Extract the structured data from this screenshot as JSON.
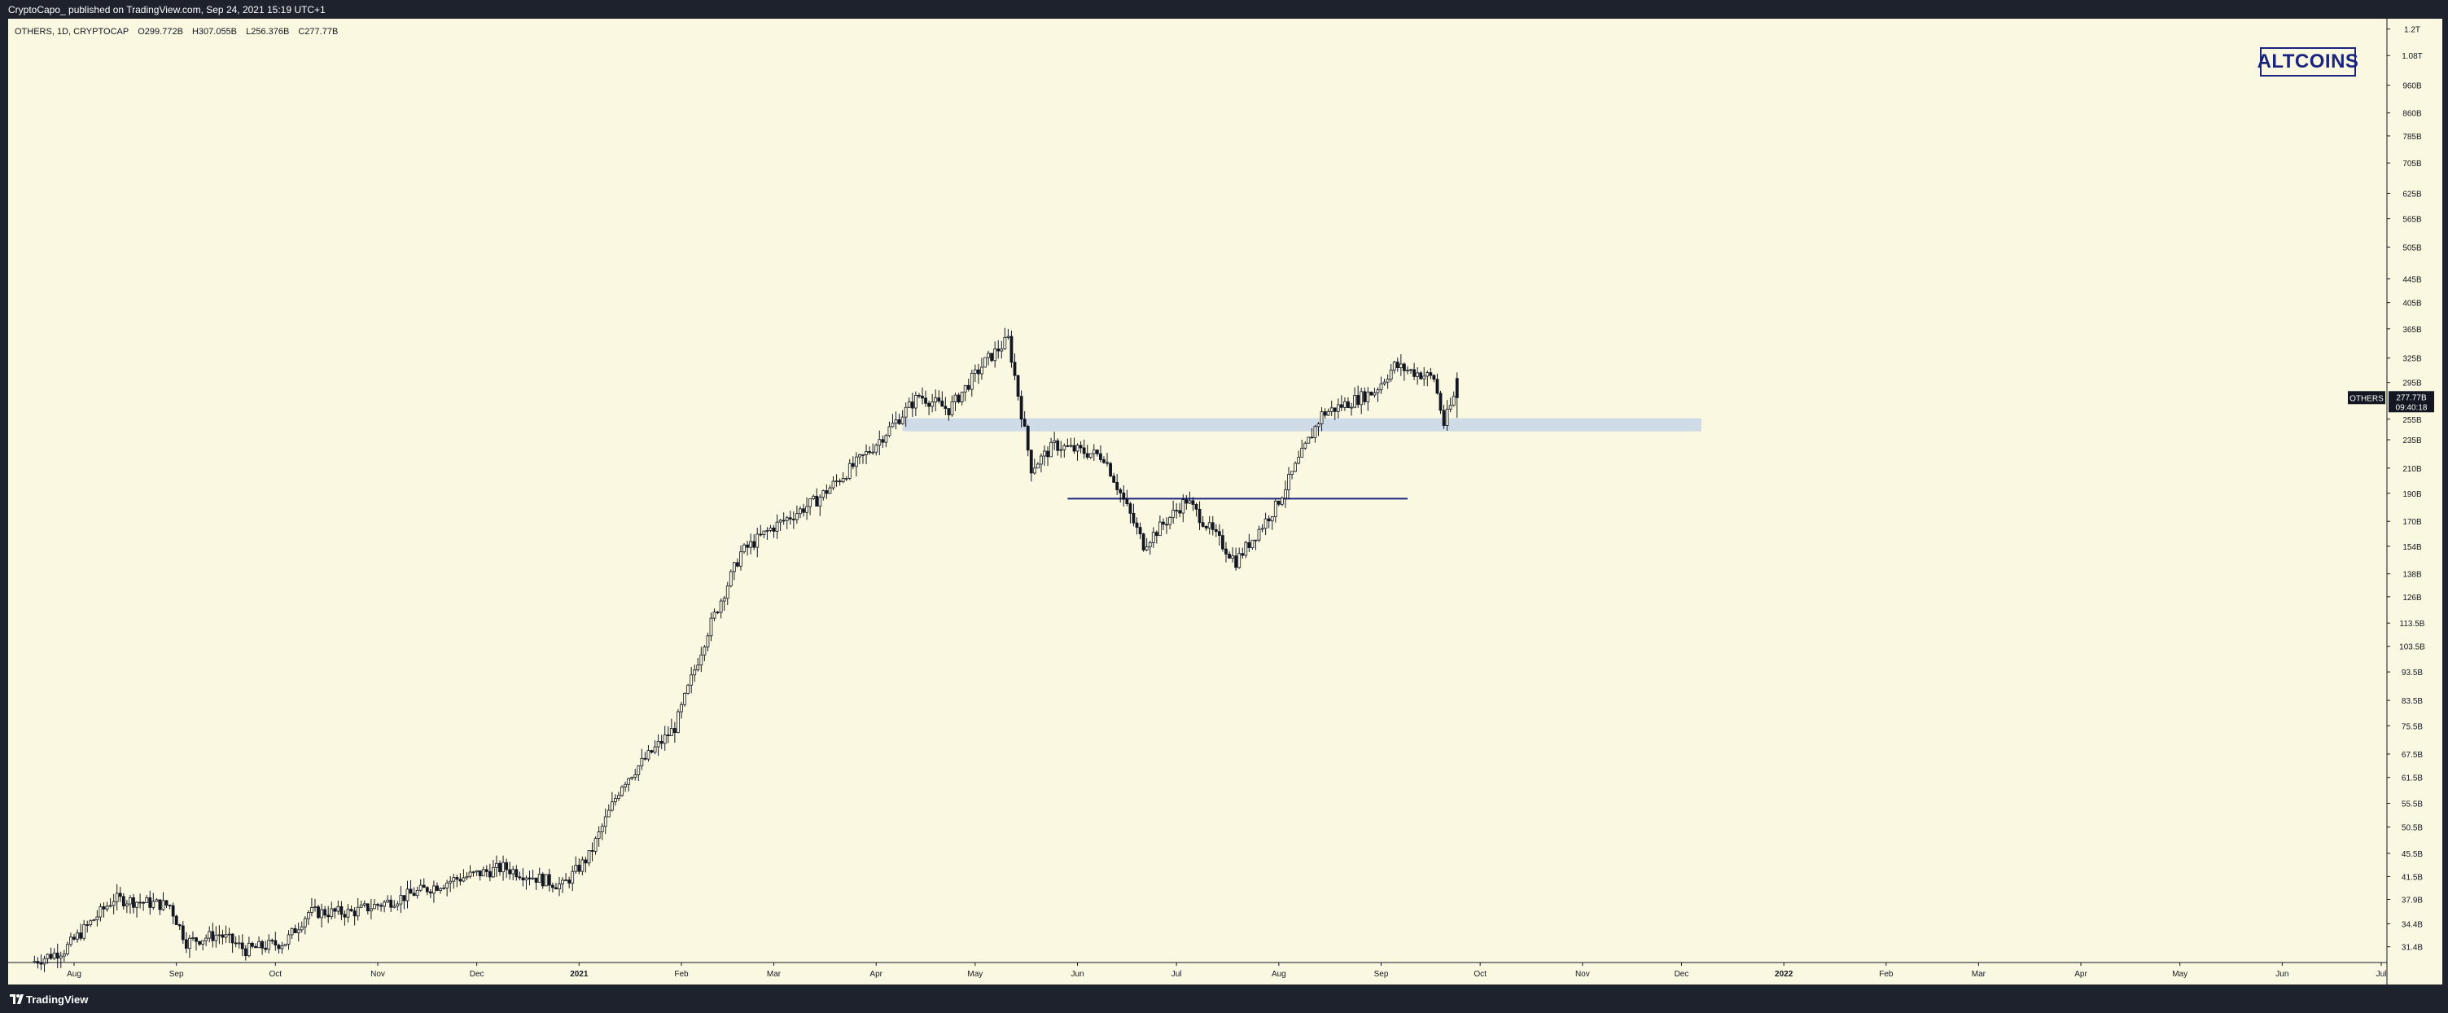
{
  "header": {
    "published_text": "CryptoCapo_ published on TradingView.com, Sep 24, 2021 15:19 UTC+1"
  },
  "symbol_info": {
    "name": "OTHERS, 1D, CRYPTOCAP",
    "open": "O299.772B",
    "high": "H307.055B",
    "low": "L256.376B",
    "close": "C277.77B"
  },
  "badge": {
    "text": "ALTCOINS"
  },
  "price_tag": {
    "symbol": "OTHERS",
    "price": "277.77B",
    "countdown": "09:40:18"
  },
  "footer": {
    "brand": "TradingView"
  },
  "colors": {
    "background": "#fbf8e1",
    "frame": "#1e222d",
    "candle": "#131722",
    "zone": "#c6d3ea",
    "level_line": "#1a237e"
  },
  "chart_data": {
    "type": "candlestick",
    "symbol": "OTHERS",
    "interval": "1D",
    "exchange": "CRYPTOCAP",
    "y_scale": "log",
    "ylim": [
      29.5,
      1250
    ],
    "y_tick_labels": [
      "1.2T",
      "1.08T",
      "960B",
      "860B",
      "785B",
      "705B",
      "625B",
      "565B",
      "505B",
      "445B",
      "405B",
      "365B",
      "325B",
      "295B",
      "255B",
      "235B",
      "210B",
      "190B",
      "170B",
      "154B",
      "138B",
      "126B",
      "113.5B",
      "103.5B",
      "93.5B",
      "83.5B",
      "75.5B",
      "67.5B",
      "61.5B",
      "55.5B",
      "50.5B",
      "45.5B",
      "41.5B",
      "37.9B",
      "34.4B",
      "31.4B"
    ],
    "y_tick_values": [
      1200,
      1080,
      960,
      860,
      785,
      705,
      625,
      565,
      505,
      445,
      405,
      365,
      325,
      295,
      255,
      235,
      210,
      190,
      170,
      154,
      138,
      126,
      113.5,
      103.5,
      93.5,
      83.5,
      75.5,
      67.5,
      61.5,
      55.5,
      50.5,
      45.5,
      41.5,
      37.9,
      34.4,
      31.4
    ],
    "x_tick_labels": [
      "Aug",
      "Sep",
      "Oct",
      "Nov",
      "Dec",
      "2021",
      "Feb",
      "Mar",
      "Apr",
      "May",
      "Jun",
      "Jul",
      "Aug",
      "Sep",
      "Oct",
      "Nov",
      "Dec",
      "2022",
      "Feb",
      "Mar",
      "Apr",
      "May",
      "Jun",
      "Jul"
    ],
    "x_tick_dates": [
      "2020-08-01",
      "2020-09-01",
      "2020-10-01",
      "2020-11-01",
      "2020-12-01",
      "2021-01-01",
      "2021-02-01",
      "2021-03-01",
      "2021-04-01",
      "2021-05-01",
      "2021-06-01",
      "2021-07-01",
      "2021-08-01",
      "2021-09-01",
      "2021-10-01",
      "2021-11-01",
      "2021-12-01",
      "2022-01-01",
      "2022-02-01",
      "2022-03-01",
      "2022-04-01",
      "2022-05-01",
      "2022-06-01",
      "2022-07-01"
    ],
    "price_path": [
      {
        "date": "2020-07-20",
        "value": 29.5
      },
      {
        "date": "2020-07-30",
        "value": 31
      },
      {
        "date": "2020-08-14",
        "value": 38
      },
      {
        "date": "2020-08-31",
        "value": 37
      },
      {
        "date": "2020-09-05",
        "value": 32
      },
      {
        "date": "2020-09-15",
        "value": 33
      },
      {
        "date": "2020-09-23",
        "value": 31
      },
      {
        "date": "2020-10-05",
        "value": 32
      },
      {
        "date": "2020-10-12",
        "value": 36
      },
      {
        "date": "2020-10-25",
        "value": 36
      },
      {
        "date": "2020-11-05",
        "value": 37.5
      },
      {
        "date": "2020-11-25",
        "value": 41
      },
      {
        "date": "2020-12-10",
        "value": 43
      },
      {
        "date": "2020-12-28",
        "value": 40
      },
      {
        "date": "2021-01-05",
        "value": 45
      },
      {
        "date": "2021-01-15",
        "value": 60
      },
      {
        "date": "2021-01-31",
        "value": 75
      },
      {
        "date": "2021-02-10",
        "value": 110
      },
      {
        "date": "2021-02-20",
        "value": 150
      },
      {
        "date": "2021-03-01",
        "value": 165
      },
      {
        "date": "2021-03-15",
        "value": 185
      },
      {
        "date": "2021-03-31",
        "value": 225
      },
      {
        "date": "2021-04-15",
        "value": 280
      },
      {
        "date": "2021-04-24",
        "value": 265
      },
      {
        "date": "2021-05-05",
        "value": 320
      },
      {
        "date": "2021-05-12",
        "value": 350
      },
      {
        "date": "2021-05-19",
        "value": 210
      },
      {
        "date": "2021-05-26",
        "value": 230
      },
      {
        "date": "2021-06-10",
        "value": 220
      },
      {
        "date": "2021-06-22",
        "value": 155
      },
      {
        "date": "2021-07-05",
        "value": 185
      },
      {
        "date": "2021-07-20",
        "value": 145
      },
      {
        "date": "2021-08-01",
        "value": 180
      },
      {
        "date": "2021-08-15",
        "value": 260
      },
      {
        "date": "2021-08-31",
        "value": 285
      },
      {
        "date": "2021-09-06",
        "value": 315
      },
      {
        "date": "2021-09-18",
        "value": 300
      },
      {
        "date": "2021-09-21",
        "value": 250
      },
      {
        "date": "2021-09-24",
        "value": 277.77
      }
    ],
    "last_candle": {
      "date": "2021-09-24",
      "open": 299.772,
      "high": 307.055,
      "low": 256.376,
      "close": 277.77
    },
    "annotations": [
      {
        "kind": "zone",
        "from_date": "2021-04-09",
        "to_date": "2021-12-07",
        "y_low": 243,
        "y_high": 256
      },
      {
        "kind": "horizontal_line",
        "from_date": "2021-05-29",
        "to_date": "2021-09-09",
        "y": 186
      }
    ],
    "legend": "none",
    "grid": false
  }
}
